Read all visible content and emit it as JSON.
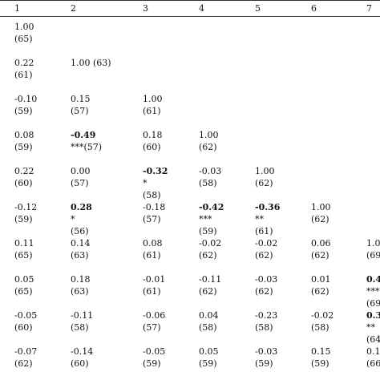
{
  "header": [
    "1",
    "2",
    "3",
    "4",
    "5",
    "6",
    "7"
  ],
  "rows": [
    [
      [
        {
          "t": "1.00"
        },
        {
          "t": "(65)"
        }
      ]
    ],
    [
      [
        {
          "t": "0.22"
        },
        {
          "t": "(61)"
        }
      ],
      [
        {
          "t": "1.00 (63)"
        }
      ]
    ],
    [
      [
        {
          "t": "-0.10"
        },
        {
          "t": "(59)"
        }
      ],
      [
        {
          "t": "0.15"
        },
        {
          "t": "(57)"
        }
      ],
      [
        {
          "t": "1.00"
        },
        {
          "t": "(61)"
        }
      ]
    ],
    [
      [
        {
          "t": "0.08"
        },
        {
          "t": "(59)"
        }
      ],
      [
        {
          "t": "-0.49",
          "b": true
        },
        {
          "t": "***(57)"
        }
      ],
      [
        {
          "t": "0.18"
        },
        {
          "t": "(60)"
        }
      ],
      [
        {
          "t": "1.00"
        },
        {
          "t": "(62)"
        }
      ]
    ],
    [
      [
        {
          "t": "0.22"
        },
        {
          "t": "(60)"
        }
      ],
      [
        {
          "t": "0.00"
        },
        {
          "t": "(57)"
        }
      ],
      [
        {
          "t": "-0.32",
          "b": true
        },
        {
          "t": "*"
        },
        {
          "t": "(58)"
        }
      ],
      [
        {
          "t": "-0.03"
        },
        {
          "t": "(58)"
        }
      ],
      [
        {
          "t": "1.00"
        },
        {
          "t": "(62)"
        }
      ]
    ],
    [
      [
        {
          "t": "-0.12"
        },
        {
          "t": "(59)"
        }
      ],
      [
        {
          "t": "0.28",
          "b": true
        },
        {
          "t": "*"
        },
        {
          "t": "(56)"
        }
      ],
      [
        {
          "t": "-0.18"
        },
        {
          "t": "(57)"
        }
      ],
      [
        {
          "t": "-0.42",
          "b": true
        },
        {
          "t": "***"
        },
        {
          "t": "(59)"
        }
      ],
      [
        {
          "t": "-0.36",
          "b": true
        },
        {
          "t": "**"
        },
        {
          "t": "(61)"
        }
      ],
      [
        {
          "t": "1.00"
        },
        {
          "t": "(62)"
        }
      ]
    ],
    [
      [
        {
          "t": "0.11"
        },
        {
          "t": "(65)"
        }
      ],
      [
        {
          "t": "0.14"
        },
        {
          "t": "(63)"
        }
      ],
      [
        {
          "t": "0.08"
        },
        {
          "t": "(61)"
        }
      ],
      [
        {
          "t": "-0.02"
        },
        {
          "t": "(62)"
        }
      ],
      [
        {
          "t": "-0.02"
        },
        {
          "t": "(62)"
        }
      ],
      [
        {
          "t": "0.06"
        },
        {
          "t": "(62)"
        }
      ],
      [
        {
          "t": "1.0"
        },
        {
          "t": "(69"
        }
      ]
    ],
    [
      [
        {
          "t": "0.05"
        },
        {
          "t": "(65)"
        }
      ],
      [
        {
          "t": "0.18"
        },
        {
          "t": "(63)"
        }
      ],
      [
        {
          "t": "-0.01"
        },
        {
          "t": "(61)"
        }
      ],
      [
        {
          "t": "-0.11"
        },
        {
          "t": "(62)"
        }
      ],
      [
        {
          "t": "-0.03"
        },
        {
          "t": "(62)"
        }
      ],
      [
        {
          "t": "0.01"
        },
        {
          "t": "(62)"
        }
      ],
      [
        {
          "t": "0.4",
          "b": true
        },
        {
          "t": "***"
        },
        {
          "t": "(69"
        }
      ]
    ],
    [
      [
        {
          "t": "-0.05"
        },
        {
          "t": "(60)"
        }
      ],
      [
        {
          "t": "-0.11"
        },
        {
          "t": "(58)"
        }
      ],
      [
        {
          "t": "-0.06"
        },
        {
          "t": "(57)"
        }
      ],
      [
        {
          "t": "0.04"
        },
        {
          "t": "(58)"
        }
      ],
      [
        {
          "t": "-0.23"
        },
        {
          "t": "(58)"
        }
      ],
      [
        {
          "t": "-0.02"
        },
        {
          "t": "(58)"
        }
      ],
      [
        {
          "t": "0.3",
          "b": true
        },
        {
          "t": "**"
        },
        {
          "t": "(64"
        }
      ]
    ],
    [
      [
        {
          "t": "-0.07"
        },
        {
          "t": "(62)"
        }
      ],
      [
        {
          "t": "-0.14"
        },
        {
          "t": "(60)"
        }
      ],
      [
        {
          "t": "-0.05"
        },
        {
          "t": "(59)"
        }
      ],
      [
        {
          "t": "0.05"
        },
        {
          "t": "(59)"
        }
      ],
      [
        {
          "t": "-0.03"
        },
        {
          "t": "(59)"
        }
      ],
      [
        {
          "t": "0.15"
        },
        {
          "t": "(59)"
        }
      ],
      [
        {
          "t": "0.1"
        },
        {
          "t": "(66"
        }
      ]
    ]
  ]
}
